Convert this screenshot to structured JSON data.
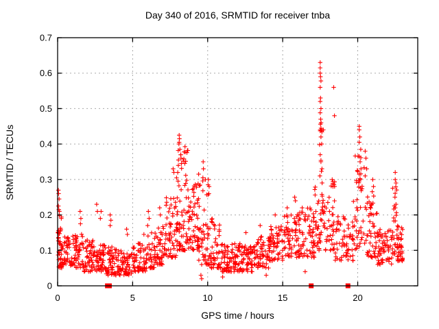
{
  "chart_data": {
    "type": "scatter",
    "title": "Day 340 of 2016, SRMTID for receiver tnba",
    "xlabel": "GPS time / hours",
    "ylabel": "SRMTID / TECUs",
    "xlim": [
      0,
      24
    ],
    "ylim": [
      0,
      0.7
    ],
    "x_ticks": [
      0,
      5,
      10,
      15,
      20
    ],
    "x_tick_labels": [
      "0",
      "5",
      "10",
      "15",
      "20"
    ],
    "y_ticks": [
      0,
      0.1,
      0.2,
      0.3,
      0.4,
      0.5,
      0.6,
      0.7
    ],
    "y_tick_labels": [
      "0",
      "0.1",
      "0.2",
      "0.3",
      "0.4",
      "0.5",
      "0.6",
      "0.7"
    ],
    "grid": true,
    "legend_position": "none",
    "background_color": "#ffffff",
    "marker": {
      "shape": "plus",
      "color": "#ff0000",
      "size": 7
    },
    "zero_marker": {
      "shape": "square",
      "color": "#ff0000",
      "size": 7
    },
    "grid_color": "#a8a8a8",
    "border_color": "#000000",
    "seed": 340,
    "zero_points_hours": [
      3.32,
      3.45,
      16.9,
      19.35
    ],
    "outlier_points": [
      [
        0.05,
        0.27
      ],
      [
        0.07,
        0.26
      ],
      [
        0.1,
        0.245
      ],
      [
        0.05,
        0.225
      ],
      [
        0.08,
        0.215
      ],
      [
        0.12,
        0.21
      ],
      [
        1.5,
        0.21
      ],
      [
        1.55,
        0.19
      ],
      [
        1.52,
        0.175
      ],
      [
        2.6,
        0.23
      ],
      [
        2.65,
        0.21
      ],
      [
        2.9,
        0.21
      ],
      [
        2.85,
        0.19
      ],
      [
        3.5,
        0.2
      ],
      [
        3.55,
        0.185
      ],
      [
        3.5,
        0.17
      ],
      [
        4.6,
        0.16
      ],
      [
        4.65,
        0.145
      ],
      [
        5.75,
        0.145
      ],
      [
        6.05,
        0.21
      ],
      [
        6.1,
        0.19
      ],
      [
        6.0,
        0.17
      ],
      [
        6.8,
        0.22
      ],
      [
        6.85,
        0.2
      ],
      [
        8.1,
        0.425
      ],
      [
        8.12,
        0.415
      ],
      [
        8.1,
        0.405
      ],
      [
        8.08,
        0.4
      ],
      [
        8.15,
        0.385
      ],
      [
        8.2,
        0.37
      ],
      [
        8.05,
        0.355
      ],
      [
        8.25,
        0.345
      ],
      [
        7.7,
        0.33
      ],
      [
        7.75,
        0.32
      ],
      [
        9.4,
        0.315
      ],
      [
        9.7,
        0.35
      ],
      [
        9.72,
        0.33
      ],
      [
        9.68,
        0.305
      ],
      [
        9.85,
        0.3
      ],
      [
        9.55,
        0.03
      ],
      [
        9.6,
        0.02
      ],
      [
        10.05,
        0.3
      ],
      [
        10.1,
        0.28
      ],
      [
        10.08,
        0.26
      ],
      [
        11.0,
        0.025
      ],
      [
        12.55,
        0.15
      ],
      [
        13.5,
        0.17
      ],
      [
        13.9,
        0.03
      ],
      [
        14.5,
        0.2
      ],
      [
        15.3,
        0.22
      ],
      [
        15.8,
        0.25
      ],
      [
        15.85,
        0.24
      ],
      [
        16.3,
        0.22
      ],
      [
        16.5,
        0.04
      ],
      [
        17.5,
        0.63
      ],
      [
        17.5,
        0.615
      ],
      [
        17.5,
        0.6
      ],
      [
        17.52,
        0.59
      ],
      [
        17.55,
        0.578
      ],
      [
        17.5,
        0.56
      ],
      [
        17.52,
        0.53
      ],
      [
        17.5,
        0.52
      ],
      [
        17.55,
        0.5
      ],
      [
        17.5,
        0.488
      ],
      [
        17.53,
        0.47
      ],
      [
        17.56,
        0.46
      ],
      [
        17.5,
        0.44
      ],
      [
        17.55,
        0.42
      ],
      [
        17.6,
        0.4
      ],
      [
        17.5,
        0.37
      ],
      [
        17.55,
        0.35
      ],
      [
        17.62,
        0.33
      ],
      [
        17.48,
        0.31
      ],
      [
        18.4,
        0.56
      ],
      [
        18.45,
        0.48
      ],
      [
        18.3,
        0.3
      ],
      [
        18.35,
        0.28
      ],
      [
        20.1,
        0.45
      ],
      [
        20.1,
        0.44
      ],
      [
        20.14,
        0.42
      ],
      [
        20.1,
        0.405
      ],
      [
        20.2,
        0.385
      ],
      [
        20.1,
        0.365
      ],
      [
        20.16,
        0.35
      ],
      [
        20.22,
        0.33
      ],
      [
        20.1,
        0.315
      ],
      [
        20.15,
        0.3
      ],
      [
        20.5,
        0.38
      ],
      [
        20.55,
        0.36
      ],
      [
        20.6,
        0.33
      ],
      [
        20.5,
        0.31
      ],
      [
        21.0,
        0.3
      ],
      [
        21.05,
        0.28
      ],
      [
        22.5,
        0.32
      ],
      [
        22.5,
        0.3
      ],
      [
        22.55,
        0.29
      ],
      [
        22.48,
        0.25
      ],
      [
        22.55,
        0.23
      ],
      [
        22.5,
        0.22
      ]
    ],
    "density_bands": [
      {
        "x0": 0.0,
        "x1": 0.3,
        "n": 22,
        "y0": 0.07,
        "y1": 0.2,
        "pow": 1.2
      },
      {
        "x0": 0.05,
        "x1": 1.0,
        "n": 60,
        "y0": 0.05,
        "y1": 0.14,
        "pow": 1.4
      },
      {
        "x0": 1.0,
        "x1": 1.7,
        "n": 48,
        "y0": 0.05,
        "y1": 0.15,
        "pow": 1.4
      },
      {
        "x0": 1.7,
        "x1": 2.4,
        "n": 50,
        "y0": 0.04,
        "y1": 0.13,
        "pow": 1.4
      },
      {
        "x0": 2.4,
        "x1": 3.2,
        "n": 55,
        "y0": 0.04,
        "y1": 0.12,
        "pow": 1.4
      },
      {
        "x0": 3.2,
        "x1": 4.0,
        "n": 55,
        "y0": 0.03,
        "y1": 0.11,
        "pow": 1.4
      },
      {
        "x0": 4.0,
        "x1": 5.0,
        "n": 62,
        "y0": 0.03,
        "y1": 0.1,
        "pow": 1.3
      },
      {
        "x0": 5.0,
        "x1": 6.0,
        "n": 62,
        "y0": 0.04,
        "y1": 0.12,
        "pow": 1.4
      },
      {
        "x0": 6.0,
        "x1": 6.5,
        "n": 32,
        "y0": 0.05,
        "y1": 0.15,
        "pow": 1.5
      },
      {
        "x0": 6.5,
        "x1": 7.2,
        "n": 45,
        "y0": 0.06,
        "y1": 0.17,
        "pow": 1.5
      },
      {
        "x0": 7.2,
        "x1": 7.9,
        "n": 52,
        "y0": 0.08,
        "y1": 0.25,
        "pow": 1.6
      },
      {
        "x0": 7.9,
        "x1": 8.7,
        "n": 75,
        "y0": 0.1,
        "y1": 0.4,
        "pow": 1.7
      },
      {
        "x0": 8.7,
        "x1": 9.4,
        "n": 60,
        "y0": 0.1,
        "y1": 0.29,
        "pow": 1.4
      },
      {
        "x0": 9.4,
        "x1": 10.1,
        "n": 48,
        "y0": 0.06,
        "y1": 0.3,
        "pow": 1.8
      },
      {
        "x0": 10.1,
        "x1": 10.9,
        "n": 48,
        "y0": 0.05,
        "y1": 0.19,
        "pow": 1.7
      },
      {
        "x0": 10.9,
        "x1": 12.0,
        "n": 70,
        "y0": 0.04,
        "y1": 0.12,
        "pow": 1.3
      },
      {
        "x0": 12.0,
        "x1": 13.1,
        "n": 70,
        "y0": 0.04,
        "y1": 0.12,
        "pow": 1.3
      },
      {
        "x0": 13.1,
        "x1": 14.1,
        "n": 62,
        "y0": 0.05,
        "y1": 0.14,
        "pow": 1.4
      },
      {
        "x0": 14.1,
        "x1": 15.1,
        "n": 62,
        "y0": 0.07,
        "y1": 0.17,
        "pow": 1.4
      },
      {
        "x0": 15.1,
        "x1": 16.1,
        "n": 62,
        "y0": 0.08,
        "y1": 0.21,
        "pow": 1.5
      },
      {
        "x0": 16.1,
        "x1": 17.1,
        "n": 62,
        "y0": 0.08,
        "y1": 0.22,
        "pow": 1.5
      },
      {
        "x0": 17.1,
        "x1": 17.45,
        "n": 24,
        "y0": 0.1,
        "y1": 0.28,
        "pow": 1.5
      },
      {
        "x0": 17.45,
        "x1": 17.75,
        "n": 30,
        "y0": 0.12,
        "y1": 0.46,
        "pow": 1.5
      },
      {
        "x0": 17.75,
        "x1": 18.5,
        "n": 42,
        "y0": 0.1,
        "y1": 0.3,
        "pow": 1.6
      },
      {
        "x0": 18.5,
        "x1": 19.7,
        "n": 58,
        "y0": 0.07,
        "y1": 0.2,
        "pow": 1.4
      },
      {
        "x0": 19.7,
        "x1": 20.45,
        "n": 45,
        "y0": 0.1,
        "y1": 0.38,
        "pow": 1.7
      },
      {
        "x0": 20.45,
        "x1": 21.3,
        "n": 52,
        "y0": 0.08,
        "y1": 0.27,
        "pow": 1.6
      },
      {
        "x0": 21.3,
        "x1": 22.3,
        "n": 62,
        "y0": 0.06,
        "y1": 0.16,
        "pow": 1.4
      },
      {
        "x0": 22.3,
        "x1": 22.65,
        "n": 24,
        "y0": 0.09,
        "y1": 0.28,
        "pow": 1.6
      },
      {
        "x0": 22.6,
        "x1": 23.0,
        "n": 42,
        "y0": 0.07,
        "y1": 0.17,
        "pow": 1.3
      }
    ]
  }
}
